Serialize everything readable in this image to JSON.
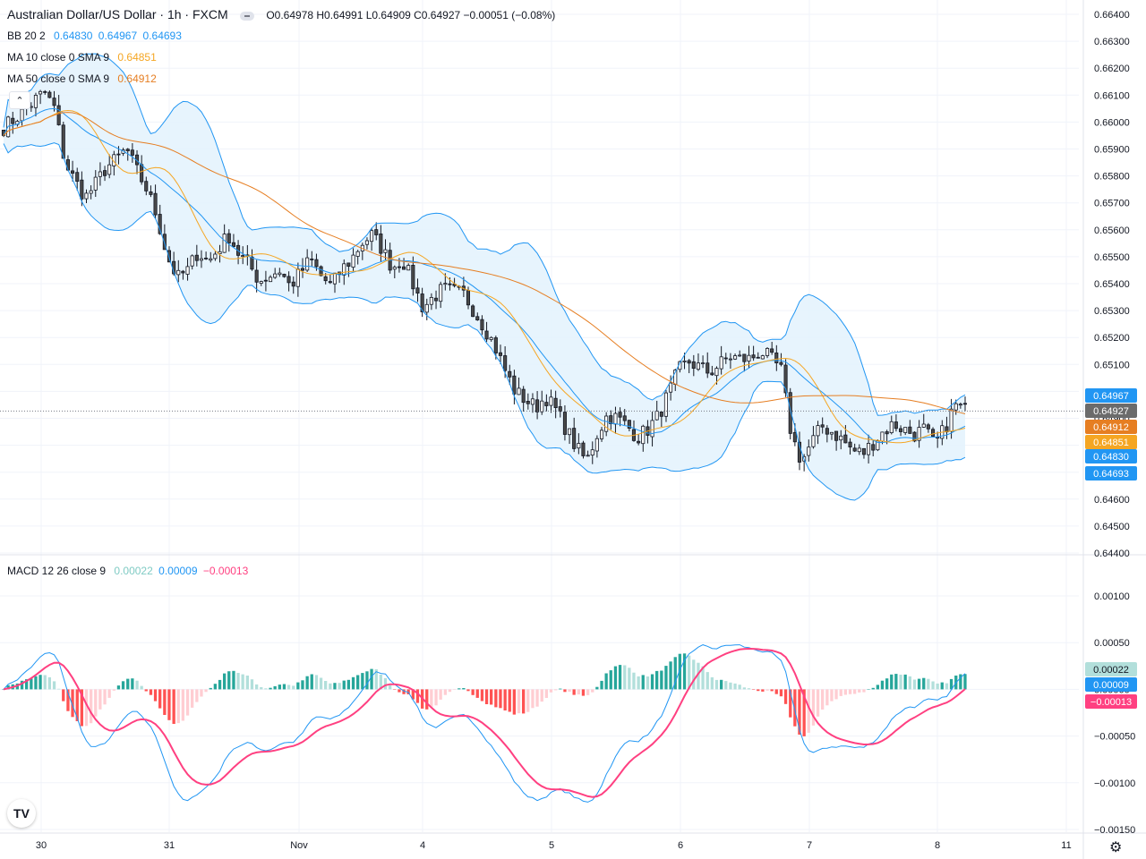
{
  "header": {
    "title": "Australian Dollar/US Dollar · 1h · FXCM",
    "ohlc": "O0.64978 H0.64991 L0.64909 C0.64927 −0.00051 (−0.08%)"
  },
  "legend": {
    "bb": {
      "label": "BB 20 2",
      "values": [
        "0.64830",
        "0.64967",
        "0.64693"
      ]
    },
    "ma10": {
      "label": "MA 10 close 0 SMA 9",
      "value": "0.64851"
    },
    "ma50": {
      "label": "MA 50 close 0 SMA 9",
      "value": "0.64912"
    },
    "macd": {
      "label": "MACD 12 26 close 9",
      "values": [
        "0.00022",
        "0.00009",
        "−0.00013"
      ]
    }
  },
  "colors": {
    "up": "#ffffff",
    "down": "#4a4a4a",
    "wick": "#131722",
    "bb": "#2196f3",
    "bb_fill": "#e3f2fd",
    "ma10": "#f5a623",
    "ma50": "#e67e22",
    "macd_line": "#2196f3",
    "signal_line": "#ff4081",
    "hist_up_strong": "#26a69a",
    "hist_up_weak": "#b2dfdb",
    "hist_down_strong": "#ff5252",
    "hist_down_weak": "#ffcdd2",
    "grid": "#f0f3fa",
    "axis_text": "#131722"
  },
  "icons": {
    "collapse": "chevron-up-icon",
    "logo": "tradingview-logo",
    "settings": "gear-icon"
  },
  "collapse_glyph": "⌃",
  "logo_text": "TV",
  "gear_glyph": "⚙",
  "chart_data": [
    {
      "type": "candlestick",
      "symbol": "AUD/USD",
      "timeframe": "1h",
      "ylim": [
        0.644,
        0.664
      ],
      "y_ticks": [
        "0.66400",
        "0.66300",
        "0.66200",
        "0.66100",
        "0.66000",
        "0.65900",
        "0.65800",
        "0.65700",
        "0.65600",
        "0.65500",
        "0.65400",
        "0.65300",
        "0.65200",
        "0.65100",
        "0.65000",
        "0.64900",
        "0.64800",
        "0.64700",
        "0.64600",
        "0.64500",
        "0.64400"
      ],
      "x_labels": [
        "30",
        "31",
        "Nov",
        "4",
        "5",
        "6",
        "7",
        "8",
        "11"
      ],
      "last_price": 0.64927,
      "price_badges": [
        {
          "value": "0.64967",
          "color": "#2196f3"
        },
        {
          "value": "0.64927",
          "color": "#6b6b6b"
        },
        {
          "value": "0.64912",
          "color": "#e67e22"
        },
        {
          "value": "0.64851",
          "color": "#f5a623"
        },
        {
          "value": "0.64830",
          "color": "#2196f3"
        },
        {
          "value": "0.64693",
          "color": "#2196f3"
        }
      ],
      "close_path": [
        0.6598,
        0.6601,
        0.6604,
        0.6608,
        0.6611,
        0.6605,
        0.6585,
        0.6578,
        0.6572,
        0.6577,
        0.6583,
        0.6586,
        0.659,
        0.6582,
        0.6575,
        0.6565,
        0.655,
        0.6542,
        0.6545,
        0.6552,
        0.6548,
        0.6553,
        0.6558,
        0.6551,
        0.6547,
        0.6541,
        0.6543,
        0.6545,
        0.6539,
        0.6544,
        0.6549,
        0.6543,
        0.6539,
        0.6545,
        0.6549,
        0.6555,
        0.6558,
        0.6553,
        0.6546,
        0.6549,
        0.654,
        0.6531,
        0.6535,
        0.6538,
        0.6537,
        0.6536,
        0.653,
        0.6524,
        0.6517,
        0.6508,
        0.65,
        0.6497,
        0.6494,
        0.6498,
        0.6493,
        0.6486,
        0.6479,
        0.6474,
        0.6484,
        0.6491,
        0.649,
        0.6487,
        0.6483,
        0.6486,
        0.6491,
        0.6499,
        0.6508,
        0.6511,
        0.6509,
        0.6507,
        0.651,
        0.6513,
        0.6512,
        0.6512,
        0.6515,
        0.6512,
        0.6508,
        0.6484,
        0.6474,
        0.6481,
        0.6487,
        0.6485,
        0.6482,
        0.6478,
        0.6477,
        0.6481,
        0.6485,
        0.6488,
        0.6486,
        0.6484,
        0.6486,
        0.648,
        0.6486,
        0.6495,
        0.6493
      ],
      "close_x_range": [
        "30",
        "8"
      ],
      "ma_note": "BB bands, MA10, MA50 derived from close_path"
    },
    {
      "type": "bar+line",
      "name": "MACD 12 26 close 9",
      "ylim": [
        -0.0015,
        0.0012
      ],
      "y_ticks": [
        "0.00100",
        "0.00050",
        "0.00000",
        "−0.00050",
        "−0.00100",
        "−0.00150"
      ],
      "badges": [
        {
          "value": "0.00022",
          "color": "#b2dfdb",
          "text": "#131722"
        },
        {
          "value": "0.00009",
          "color": "#2196f3",
          "text": "#ffffff"
        },
        {
          "value": "−0.00013",
          "color": "#ff4081",
          "text": "#ffffff"
        }
      ]
    }
  ]
}
